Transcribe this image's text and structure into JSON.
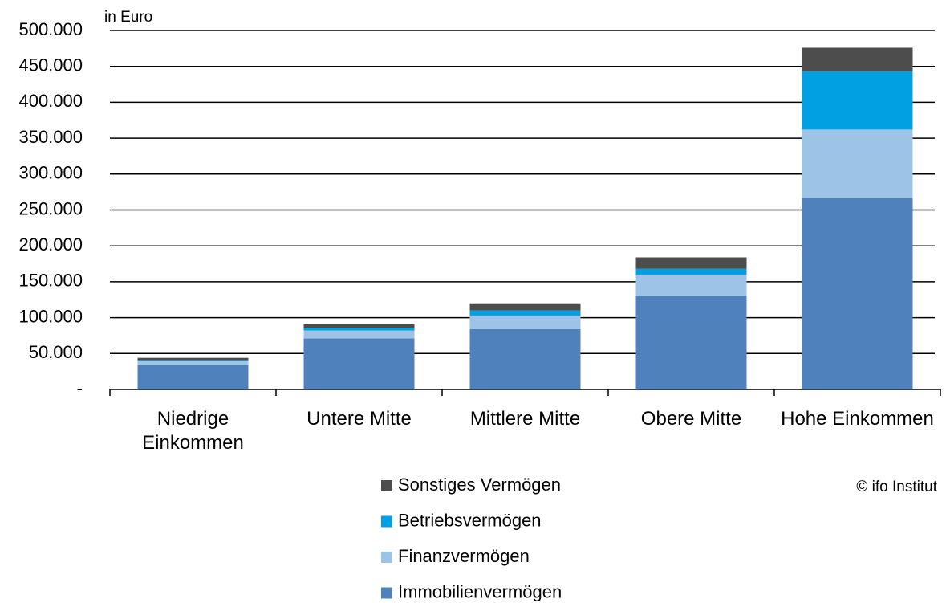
{
  "chart_data": {
    "type": "stacked_bar",
    "y_label": "in Euro",
    "source": "© ifo Institut",
    "categories": [
      "Niedrige Einkommen",
      "Untere Mitte",
      "Mittlere Mitte",
      "Obere Mitte",
      "Hohe Einkommen"
    ],
    "series": [
      {
        "name": "Immobilienvermögen",
        "color": "#4f81bd",
        "values": [
          34000,
          71000,
          84000,
          130000,
          267000
        ]
      },
      {
        "name": "Finanzvermögen",
        "color": "#9dc3e6",
        "values": [
          6000,
          11000,
          19000,
          30000,
          95000
        ]
      },
      {
        "name": "Betriebsvermögen",
        "color": "#00a0e3",
        "values": [
          1000,
          4000,
          7000,
          8000,
          81000
        ]
      },
      {
        "name": "Sonstiges Vermögen",
        "color": "#4d4d4d",
        "values": [
          3000,
          5000,
          10000,
          16000,
          33000
        ]
      }
    ],
    "ylim": [
      0,
      500000
    ],
    "yticks": [
      {
        "value": 0,
        "label": "-"
      },
      {
        "value": 50000,
        "label": "50.000"
      },
      {
        "value": 100000,
        "label": "100.000"
      },
      {
        "value": 150000,
        "label": "150.000"
      },
      {
        "value": 200000,
        "label": "200.000"
      },
      {
        "value": 250000,
        "label": "250.000"
      },
      {
        "value": 300000,
        "label": "300.000"
      },
      {
        "value": 350000,
        "label": "350.000"
      },
      {
        "value": 400000,
        "label": "400.000"
      },
      {
        "value": 450000,
        "label": "450.000"
      },
      {
        "value": 500000,
        "label": "500.000"
      }
    ],
    "grid": true
  }
}
